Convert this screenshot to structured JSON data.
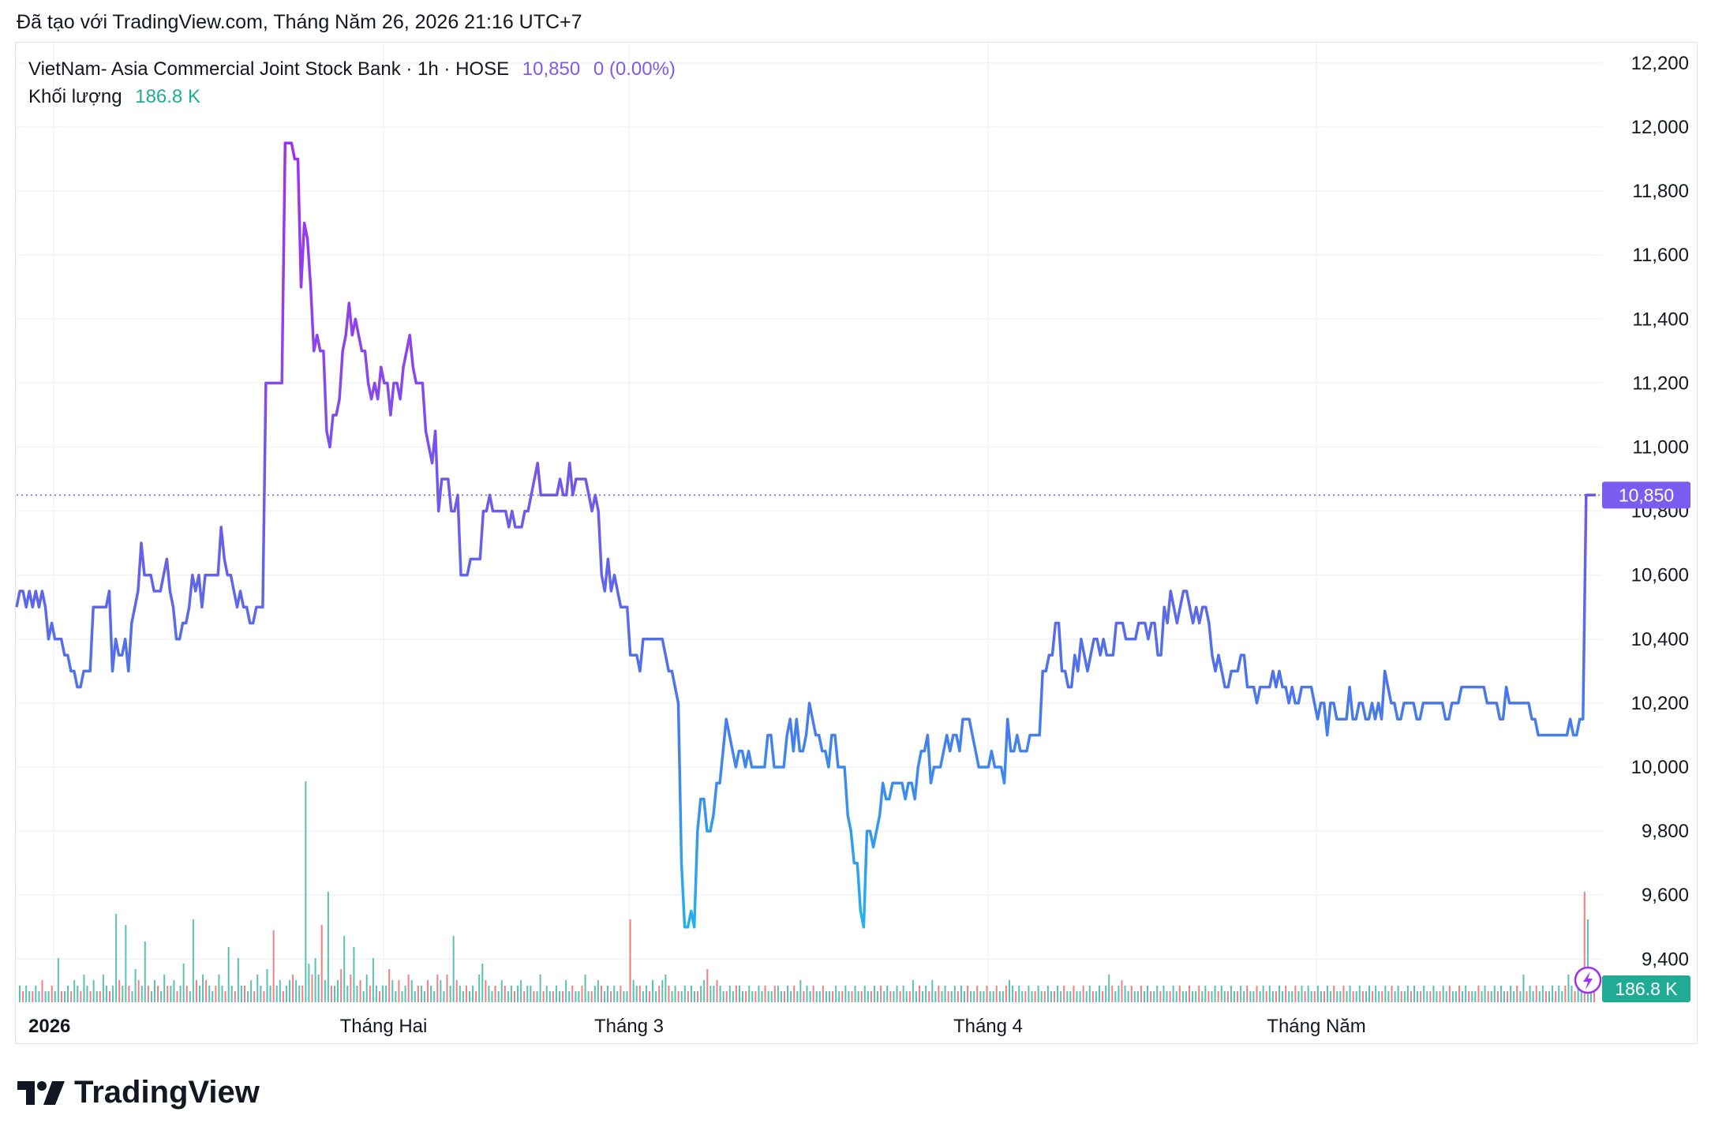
{
  "header": {
    "caption": "Đã tạo với TradingView.com, Tháng Năm 26, 2026 21:16 UTC+7"
  },
  "legend": {
    "symbol": "VietNam- Asia Commercial Joint Stock Bank · 1h · HOSE",
    "last": "10,850",
    "change": "0 (0.00%)",
    "volume_label": "Khối lượng",
    "volume_value": "186.8 K"
  },
  "price_badge": "10,850",
  "volume_badge": "186.8 K",
  "brand": {
    "name": "TradingView"
  },
  "colors": {
    "line_purple": "#a030ee",
    "line_blue": "#6a5ee8",
    "line_cyan": "#2aa7ee",
    "badge_price": "#7b5cf0",
    "badge_volume": "#22ab94",
    "vol_up": "#5bc0b2",
    "vol_down": "#f08080",
    "grid": "#f0f3fa",
    "axis_text": "#131722"
  },
  "chart_data": {
    "type": "line",
    "title": "",
    "ylim": [
      9300,
      12300
    ],
    "y_ticks": [
      "12,200",
      "12,000",
      "11,800",
      "11,600",
      "11,400",
      "11,200",
      "11,000",
      "10,800",
      "10,600",
      "10,400",
      "10,200",
      "10,000",
      "9,800",
      "9,600",
      "9,400"
    ],
    "x_ticks": [
      "2026",
      "Tháng Hai",
      "Tháng 3",
      "Tháng 4",
      "Tháng Năm"
    ],
    "last_price": 10850,
    "grid": true,
    "series": [
      {
        "values": [
          10500,
          10550,
          10550,
          10500,
          10550,
          10500,
          10550,
          10500,
          10550,
          10500,
          10400,
          10450,
          10400,
          10400,
          10400,
          10350,
          10350,
          10300,
          10300,
          10250,
          10250,
          10300,
          10300,
          10300,
          10500,
          10500,
          10500,
          10500,
          10500,
          10550,
          10300,
          10400,
          10350,
          10350,
          10400,
          10300,
          10450,
          10500,
          10550,
          10700,
          10600,
          10600,
          10600,
          10550,
          10550,
          10550,
          10600,
          10650,
          10550,
          10500,
          10400,
          10400,
          10450,
          10450,
          10500,
          10600,
          10550,
          10600,
          10500,
          10600,
          10600,
          10600,
          10600,
          10600,
          10750,
          10650,
          10600,
          10600,
          10550,
          10500,
          10550,
          10500,
          10500,
          10450,
          10450,
          10500,
          10500,
          10500,
          11200,
          11200,
          11200,
          11200,
          11200,
          11200,
          11950,
          11950,
          11950,
          11900,
          11900,
          11500,
          11700,
          11650,
          11500,
          11300,
          11350,
          11300,
          11300,
          11050,
          11000,
          11100,
          11100,
          11150,
          11300,
          11350,
          11450,
          11350,
          11400,
          11350,
          11300,
          11300,
          11200,
          11150,
          11200,
          11150,
          11250,
          11200,
          11200,
          11100,
          11200,
          11200,
          11150,
          11250,
          11300,
          11350,
          11250,
          11200,
          11200,
          11200,
          11050,
          11000,
          10950,
          11050,
          10800,
          10900,
          10900,
          10900,
          10800,
          10800,
          10850,
          10600,
          10600,
          10600,
          10650,
          10650,
          10650,
          10650,
          10800,
          10800,
          10850,
          10800,
          10800,
          10800,
          10800,
          10800,
          10750,
          10800,
          10750,
          10750,
          10750,
          10800,
          10800,
          10850,
          10900,
          10950,
          10850,
          10850,
          10850,
          10850,
          10850,
          10850,
          10900,
          10850,
          10850,
          10950,
          10850,
          10900,
          10900,
          10900,
          10900,
          10850,
          10800,
          10850,
          10800,
          10600,
          10550,
          10650,
          10550,
          10600,
          10550,
          10500,
          10500,
          10500,
          10350,
          10350,
          10350,
          10300,
          10400,
          10400,
          10400,
          10400,
          10400,
          10400,
          10400,
          10350,
          10300,
          10300,
          10250,
          10200,
          9700,
          9500,
          9500,
          9550,
          9500,
          9800,
          9900,
          9900,
          9800,
          9800,
          9850,
          9950,
          9950,
          10050,
          10150,
          10100,
          10050,
          10000,
          10050,
          10050,
          10000,
          10050,
          10000,
          10000,
          10000,
          10000,
          10000,
          10100,
          10100,
          10000,
          10000,
          10000,
          10000,
          10100,
          10150,
          10050,
          10150,
          10050,
          10050,
          10100,
          10200,
          10150,
          10100,
          10100,
          10050,
          10050,
          10000,
          10100,
          10100,
          10000,
          10000,
          10000,
          9850,
          9800,
          9700,
          9700,
          9550,
          9500,
          9800,
          9800,
          9750,
          9800,
          9850,
          9950,
          9900,
          9900,
          9950,
          9950,
          9950,
          9950,
          9900,
          9950,
          9950,
          9900,
          10000,
          10050,
          10050,
          10100,
          9950,
          10000,
          10000,
          10000,
          10050,
          10100,
          10050,
          10100,
          10100,
          10050,
          10150,
          10150,
          10150,
          10100,
          10050,
          10000,
          10000,
          10000,
          10000,
          10050,
          10000,
          10000,
          10000,
          9950,
          10150,
          10050,
          10050,
          10100,
          10050,
          10050,
          10050,
          10100,
          10100,
          10100,
          10100,
          10300,
          10300,
          10350,
          10350,
          10450,
          10450,
          10300,
          10300,
          10250,
          10250,
          10350,
          10300,
          10400,
          10350,
          10300,
          10350,
          10400,
          10400,
          10350,
          10400,
          10350,
          10350,
          10350,
          10450,
          10450,
          10450,
          10400,
          10400,
          10400,
          10400,
          10450,
          10450,
          10450,
          10400,
          10450,
          10450,
          10350,
          10350,
          10500,
          10450,
          10550,
          10500,
          10450,
          10500,
          10550,
          10550,
          10500,
          10450,
          10500,
          10450,
          10500,
          10500,
          10450,
          10350,
          10300,
          10350,
          10300,
          10250,
          10250,
          10300,
          10300,
          10300,
          10350,
          10350,
          10250,
          10250,
          10250,
          10200,
          10250,
          10250,
          10250,
          10250,
          10300,
          10250,
          10300,
          10250,
          10250,
          10200,
          10250,
          10200,
          10200,
          10250,
          10250,
          10250,
          10250,
          10200,
          10150,
          10200,
          10200,
          10100,
          10200,
          10200,
          10150,
          10150,
          10150,
          10150,
          10250,
          10150,
          10150,
          10200,
          10200,
          10150,
          10150,
          10200,
          10150,
          10200,
          10150,
          10300,
          10250,
          10200,
          10200,
          10150,
          10150,
          10200,
          10200,
          10200,
          10200,
          10150,
          10150,
          10200,
          10200,
          10200,
          10200,
          10200,
          10200,
          10200,
          10150,
          10150,
          10200,
          10200,
          10200,
          10250,
          10250,
          10250,
          10250,
          10250,
          10250,
          10250,
          10250,
          10200,
          10200,
          10200,
          10200,
          10150,
          10150,
          10250,
          10200,
          10200,
          10200,
          10200,
          10200,
          10200,
          10200,
          10150,
          10150,
          10100,
          10100,
          10100,
          10100,
          10100,
          10100,
          10100,
          10100,
          10100,
          10100,
          10150,
          10100,
          10100,
          10150,
          10150,
          10850,
          10850,
          10850,
          10850
        ]
      },
      {
        "name": "Khối lượng",
        "type": "bar",
        "values": [
          0.3,
          0.2,
          0.3,
          0.2,
          0.2,
          0.3,
          0.2,
          0.4,
          0.2,
          0.2,
          0.3,
          0.2,
          0.8,
          0.2,
          0.2,
          0.3,
          0.2,
          0.4,
          0.3,
          0.2,
          0.5,
          0.3,
          0.2,
          0.4,
          0.2,
          0.2,
          0.5,
          0.3,
          0.2,
          0.3,
          1.6,
          0.4,
          0.3,
          1.4,
          0.3,
          0.2,
          0.6,
          0.4,
          0.3,
          1.1,
          0.3,
          0.2,
          0.4,
          0.3,
          0.2,
          0.5,
          0.3,
          0.3,
          0.4,
          0.2,
          0.3,
          0.7,
          0.3,
          0.2,
          1.5,
          0.4,
          0.3,
          0.5,
          0.4,
          0.3,
          0.2,
          0.3,
          0.5,
          0.3,
          0.2,
          1.0,
          0.3,
          0.2,
          0.8,
          0.3,
          0.3,
          0.2,
          0.4,
          0.2,
          0.5,
          0.3,
          0.2,
          0.6,
          0.3,
          1.3,
          0.3,
          0.4,
          0.2,
          0.3,
          0.4,
          0.5,
          0.4,
          0.3,
          0.3,
          4.0,
          0.7,
          0.5,
          0.8,
          0.5,
          1.4,
          0.4,
          2.0,
          0.3,
          0.3,
          0.4,
          0.6,
          1.2,
          0.3,
          0.5,
          1.0,
          0.3,
          0.4,
          0.2,
          0.5,
          0.3,
          0.8,
          0.3,
          0.2,
          0.3,
          0.3,
          0.6,
          0.4,
          0.2,
          0.4,
          0.2,
          0.3,
          0.5,
          0.4,
          0.2,
          0.3,
          0.3,
          0.2,
          0.4,
          0.3,
          0.2,
          0.5,
          0.4,
          0.2,
          0.5,
          0.3,
          1.2,
          0.4,
          0.3,
          0.2,
          0.3,
          0.2,
          0.3,
          0.2,
          0.5,
          0.7,
          0.4,
          0.3,
          0.2,
          0.3,
          0.2,
          0.4,
          0.3,
          0.2,
          0.3,
          0.2,
          0.3,
          0.4,
          0.2,
          0.3,
          0.3,
          0.2,
          0.2,
          0.5,
          0.2,
          0.3,
          0.2,
          0.2,
          0.3,
          0.2,
          0.2,
          0.4,
          0.2,
          0.3,
          0.2,
          0.2,
          0.3,
          0.5,
          0.2,
          0.2,
          0.3,
          0.4,
          0.3,
          0.2,
          0.3,
          0.2,
          0.3,
          0.2,
          0.3,
          0.2,
          0.2,
          1.5,
          0.4,
          0.3,
          0.3,
          0.2,
          0.3,
          0.2,
          0.4,
          0.2,
          0.3,
          0.4,
          0.5,
          0.3,
          0.2,
          0.3,
          0.2,
          0.2,
          0.3,
          0.2,
          0.3,
          0.2,
          0.2,
          0.3,
          0.4,
          0.6,
          0.3,
          0.3,
          0.4,
          0.3,
          0.2,
          0.2,
          0.3,
          0.2,
          0.3,
          0.3,
          0.2,
          0.2,
          0.3,
          0.2,
          0.2,
          0.3,
          0.2,
          0.3,
          0.2,
          0.2,
          0.3,
          0.3,
          0.2,
          0.2,
          0.3,
          0.2,
          0.3,
          0.2,
          0.4,
          0.2,
          0.3,
          0.2,
          0.3,
          0.2,
          0.2,
          0.3,
          0.2,
          0.2,
          0.2,
          0.3,
          0.2,
          0.2,
          0.3,
          0.2,
          0.2,
          0.3,
          0.2,
          0.2,
          0.3,
          0.2,
          0.2,
          0.3,
          0.2,
          0.3,
          0.2,
          0.3,
          0.2,
          0.2,
          0.3,
          0.2,
          0.3,
          0.2,
          0.2,
          0.4,
          0.2,
          0.3,
          0.2,
          0.3,
          0.2,
          0.4,
          0.2,
          0.3,
          0.2,
          0.3,
          0.2,
          0.2,
          0.3,
          0.2,
          0.3,
          0.2,
          0.3,
          0.2,
          0.2,
          0.3,
          0.2,
          0.2,
          0.3,
          0.2,
          0.2,
          0.3,
          0.2,
          0.2,
          0.3,
          0.4,
          0.3,
          0.2,
          0.3,
          0.2,
          0.2,
          0.3,
          0.2,
          0.2,
          0.3,
          0.2,
          0.2,
          0.3,
          0.2,
          0.2,
          0.3,
          0.2,
          0.3,
          0.2,
          0.2,
          0.3,
          0.2,
          0.2,
          0.3,
          0.2,
          0.3,
          0.2,
          0.2,
          0.3,
          0.2,
          0.3,
          0.5,
          0.3,
          0.2,
          0.3,
          0.4,
          0.3,
          0.2,
          0.3,
          0.2,
          0.2,
          0.3,
          0.2,
          0.3,
          0.2,
          0.2,
          0.3,
          0.2,
          0.3,
          0.2,
          0.2,
          0.3,
          0.2,
          0.3,
          0.2,
          0.2,
          0.3,
          0.2,
          0.2,
          0.3,
          0.2,
          0.3,
          0.2,
          0.2,
          0.3,
          0.2,
          0.3,
          0.2,
          0.2,
          0.3,
          0.2,
          0.2,
          0.3,
          0.2,
          0.3,
          0.2,
          0.2,
          0.3,
          0.2,
          0.3,
          0.2,
          0.3,
          0.2,
          0.2,
          0.3,
          0.2,
          0.3,
          0.2,
          0.2,
          0.3,
          0.2,
          0.3,
          0.2,
          0.3,
          0.2,
          0.2,
          0.3,
          0.2,
          0.2,
          0.3,
          0.2,
          0.3,
          0.2,
          0.2,
          0.3,
          0.2,
          0.3,
          0.2,
          0.2,
          0.3,
          0.2,
          0.2,
          0.3,
          0.2,
          0.3,
          0.2,
          0.2,
          0.3,
          0.2,
          0.3,
          0.2,
          0.3,
          0.2,
          0.2,
          0.3,
          0.2,
          0.3,
          0.2,
          0.2,
          0.3,
          0.2,
          0.2,
          0.3,
          0.2,
          0.2,
          0.3,
          0.2,
          0.3,
          0.2,
          0.2,
          0.3,
          0.2,
          0.3,
          0.2,
          0.2,
          0.2,
          0.3,
          0.2,
          0.3,
          0.2,
          0.2,
          0.3,
          0.2,
          0.3,
          0.2,
          0.2,
          0.3,
          0.2,
          0.3,
          0.2,
          0.5,
          0.2,
          0.3,
          0.2,
          0.3,
          0.2,
          0.3,
          0.2,
          0.2,
          0.3,
          0.2,
          0.3,
          0.2,
          0.3,
          0.5,
          0.3,
          0.2,
          0.3,
          0.2,
          2.0,
          1.5,
          0.5,
          0.4
        ]
      }
    ]
  }
}
